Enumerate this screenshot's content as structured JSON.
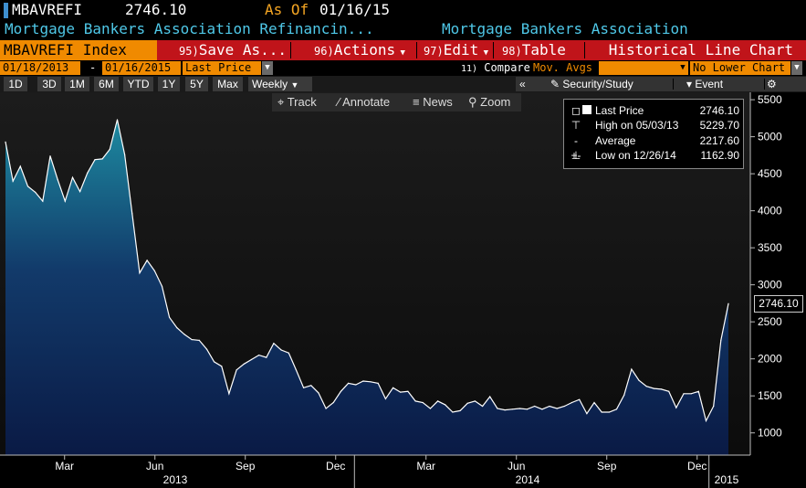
{
  "header": {
    "ticker": "MBAVREFI",
    "price": "2746.10",
    "as_of_label": "As Of",
    "as_of_date": "01/16/15",
    "description": "Mortgage Bankers Association Refinancin...",
    "source": "Mortgage Bankers Association"
  },
  "menubar": {
    "title": "MBAVREFI Index",
    "save": {
      "num": "95)",
      "label": "Save As..."
    },
    "actions": {
      "num": "96)",
      "label": "Actions"
    },
    "edit": {
      "num": "97)",
      "label": "Edit"
    },
    "table": {
      "num": "98)",
      "label": "Table"
    },
    "chart_type": "Historical Line Chart"
  },
  "datebar": {
    "start_date": "01/18/2013",
    "dash": "-",
    "end_date": "01/16/2015",
    "field": "Last Price",
    "compare_num": "11)",
    "compare_label": "Compare",
    "compare_value": "Mov. Avgs",
    "lower_chart": "No Lower Chart"
  },
  "periodbar": {
    "periods": [
      "1D",
      "3D",
      "1M",
      "6M",
      "YTD",
      "1Y",
      "5Y",
      "Max"
    ],
    "frequency": "Weekly",
    "security_study": "Security/Study",
    "event": "Event"
  },
  "chart_tools": {
    "track": "Track",
    "annotate": "Annotate",
    "news": "News",
    "zoom": "Zoom"
  },
  "legend": {
    "last_label": "Last Price",
    "last_value": "2746.10",
    "high_label": "High on 05/03/13",
    "high_value": "5229.70",
    "avg_label": "Average",
    "avg_value": "2217.60",
    "low_label": "Low on 12/26/14",
    "low_value": "1162.90"
  },
  "price_tag": "2746.10",
  "colors": {
    "accent_orange": "#f08a00",
    "menu_red": "#c0141a",
    "header_cyan": "#4fc8e8",
    "area_top": "#1d8aa0",
    "area_bottom": "#0a1a45"
  },
  "chart_data": {
    "type": "area",
    "title": "",
    "xlabel": "",
    "ylabel": "",
    "ylim": [
      700,
      5600
    ],
    "yticks": [
      1000,
      1500,
      2000,
      2500,
      3000,
      3500,
      4000,
      4500,
      5000,
      5500
    ],
    "month_labels": [
      "Mar",
      "Jun",
      "Sep",
      "Dec",
      "Mar",
      "Jun",
      "Sep",
      "Dec"
    ],
    "year_labels": [
      "2013",
      "2014",
      "2015"
    ],
    "grid": false,
    "series": [
      {
        "values": [
          4930,
          4400,
          4600,
          4330,
          4250,
          4130,
          4740,
          4420,
          4130,
          4450,
          4260,
          4510,
          4690,
          4700,
          4830,
          5229.7,
          4760,
          3960,
          3160,
          3330,
          3190,
          2980,
          2560,
          2420,
          2330,
          2260,
          2250,
          2130,
          1960,
          1900,
          1530,
          1850,
          1930,
          1990,
          2050,
          2020,
          2210,
          2120,
          2080,
          1850,
          1610,
          1640,
          1540,
          1330,
          1410,
          1560,
          1670,
          1650,
          1700,
          1690,
          1670,
          1460,
          1610,
          1550,
          1560,
          1430,
          1410,
          1330,
          1430,
          1380,
          1280,
          1300,
          1400,
          1430,
          1360,
          1490,
          1330,
          1310,
          1320,
          1330,
          1320,
          1360,
          1320,
          1360,
          1330,
          1360,
          1410,
          1450,
          1260,
          1410,
          1280,
          1280,
          1320,
          1510,
          1860,
          1710,
          1630,
          1600,
          1590,
          1560,
          1340,
          1530,
          1530,
          1560,
          1162.9,
          1360,
          2250,
          2746.1
        ]
      }
    ]
  }
}
